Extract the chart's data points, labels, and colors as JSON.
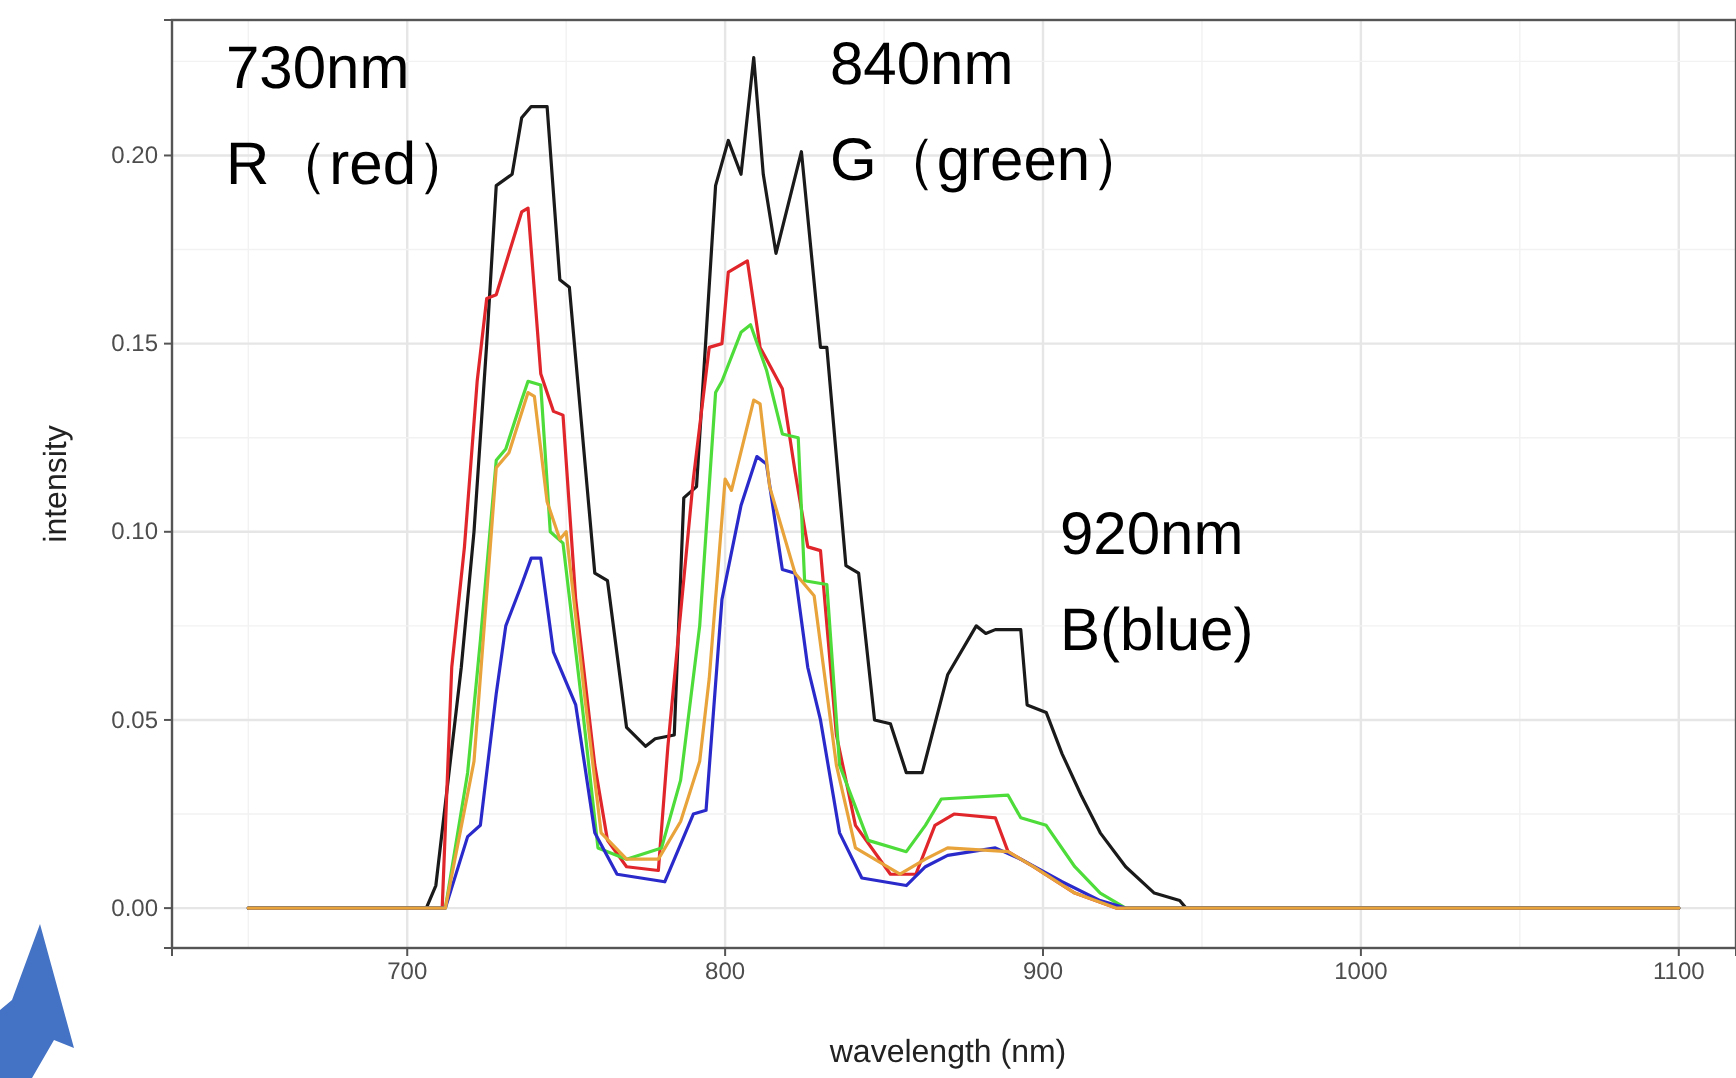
{
  "chart_data": {
    "type": "line",
    "xlabel": "wavelength (nm)",
    "ylabel": "intensity",
    "xlim": [
      626,
      1118
    ],
    "ylim": [
      -0.0106,
      0.236
    ],
    "xticks": [
      700,
      800,
      900,
      1000,
      1100
    ],
    "yticks": [
      {
        "value": 0,
        "label": "0.00"
      },
      {
        "value": 0.05,
        "label": "0.05"
      },
      {
        "value": 0.1,
        "label": "0.10"
      },
      {
        "value": 0.15,
        "label": "0.15"
      },
      {
        "value": 0.2,
        "label": "0.20"
      }
    ],
    "grid": true,
    "marker": "none",
    "line_style": "solid",
    "annotations": [
      "730nm\nR（red）",
      "840nm\nG（green）",
      "920nm\nB(blue)"
    ],
    "series": [
      {
        "color": "#1a1a1a",
        "x": [
          650,
          706,
          709,
          717,
          721,
          725,
          728,
          733,
          736,
          739,
          744,
          748,
          751,
          759,
          763,
          769,
          775,
          778,
          784,
          787,
          791,
          797,
          801,
          805,
          809,
          812,
          816,
          824,
          830,
          832,
          838,
          842,
          847,
          852,
          857,
          862,
          870,
          879,
          882,
          885,
          893,
          895,
          901,
          906,
          912,
          918,
          926,
          935,
          943,
          945,
          1100
        ],
        "values": [
          0,
          0,
          0.006,
          0.064,
          0.1,
          0.15,
          0.192,
          0.195,
          0.21,
          0.213,
          0.213,
          0.167,
          0.165,
          0.089,
          0.087,
          0.048,
          0.043,
          0.045,
          0.046,
          0.109,
          0.112,
          0.192,
          0.204,
          0.195,
          0.226,
          0.195,
          0.174,
          0.201,
          0.149,
          0.149,
          0.091,
          0.089,
          0.05,
          0.049,
          0.036,
          0.036,
          0.062,
          0.075,
          0.073,
          0.074,
          0.074,
          0.054,
          0.052,
          0.041,
          0.03,
          0.02,
          0.011,
          0.004,
          0.002,
          0,
          0
        ]
      },
      {
        "color": "#e0262b",
        "x": [
          650,
          711,
          714,
          718,
          722,
          725,
          728,
          736,
          738,
          742,
          746,
          749,
          753,
          759,
          763,
          769,
          779,
          782,
          790,
          795,
          799,
          801,
          807,
          811,
          818,
          822,
          826,
          830,
          835,
          841,
          852,
          860,
          866,
          872,
          885,
          889,
          897,
          910,
          923,
          1100
        ],
        "values": [
          0,
          0,
          0.064,
          0.096,
          0.14,
          0.162,
          0.163,
          0.185,
          0.186,
          0.142,
          0.132,
          0.131,
          0.082,
          0.038,
          0.018,
          0.011,
          0.01,
          0.043,
          0.114,
          0.149,
          0.15,
          0.169,
          0.172,
          0.149,
          0.138,
          0.116,
          0.096,
          0.095,
          0.046,
          0.022,
          0.009,
          0.009,
          0.022,
          0.025,
          0.024,
          0.015,
          0.011,
          0.004,
          0,
          0
        ]
      },
      {
        "color": "#4ddc3a",
        "x": [
          650,
          712,
          719,
          723,
          728,
          731,
          736,
          738,
          742,
          745,
          749,
          755,
          760,
          769,
          780,
          786,
          792,
          797,
          799,
          805,
          808,
          813,
          818,
          823,
          825,
          832,
          836,
          845,
          857,
          863,
          868,
          889,
          893,
          901,
          910,
          918,
          926,
          1100
        ],
        "values": [
          0,
          0,
          0.036,
          0.071,
          0.119,
          0.122,
          0.135,
          0.14,
          0.139,
          0.1,
          0.097,
          0.054,
          0.016,
          0.013,
          0.016,
          0.034,
          0.075,
          0.137,
          0.14,
          0.153,
          0.155,
          0.143,
          0.126,
          0.125,
          0.087,
          0.086,
          0.038,
          0.018,
          0.015,
          0.022,
          0.029,
          0.03,
          0.024,
          0.022,
          0.011,
          0.004,
          0,
          0
        ]
      },
      {
        "color": "#2a2acb",
        "x": [
          650,
          712,
          719,
          723,
          728,
          731,
          736,
          739,
          742,
          746,
          753,
          759,
          766,
          781,
          790,
          794,
          799,
          805,
          810,
          813,
          818,
          822,
          826,
          830,
          836,
          843,
          857,
          863,
          870,
          885,
          893,
          906,
          918,
          926,
          1100
        ],
        "values": [
          0,
          0,
          0.019,
          0.022,
          0.057,
          0.075,
          0.086,
          0.093,
          0.093,
          0.068,
          0.054,
          0.02,
          0.009,
          0.007,
          0.025,
          0.026,
          0.082,
          0.107,
          0.12,
          0.118,
          0.09,
          0.089,
          0.064,
          0.05,
          0.02,
          0.008,
          0.006,
          0.011,
          0.014,
          0.016,
          0.013,
          0.007,
          0.002,
          0,
          0
        ]
      },
      {
        "color": "#e8a33a",
        "x": [
          650,
          712,
          721,
          728,
          732,
          738,
          740,
          744,
          748,
          750,
          756,
          761,
          769,
          779,
          786,
          792,
          795,
          800,
          802,
          809,
          811,
          814,
          822,
          828,
          835,
          841,
          855,
          863,
          870,
          889,
          897,
          910,
          923,
          1100
        ],
        "values": [
          0,
          0,
          0.039,
          0.117,
          0.121,
          0.137,
          0.136,
          0.108,
          0.098,
          0.1,
          0.055,
          0.02,
          0.013,
          0.013,
          0.023,
          0.039,
          0.061,
          0.114,
          0.111,
          0.135,
          0.134,
          0.112,
          0.089,
          0.083,
          0.038,
          0.016,
          0.009,
          0.013,
          0.016,
          0.015,
          0.011,
          0.004,
          0,
          0
        ]
      }
    ]
  }
}
